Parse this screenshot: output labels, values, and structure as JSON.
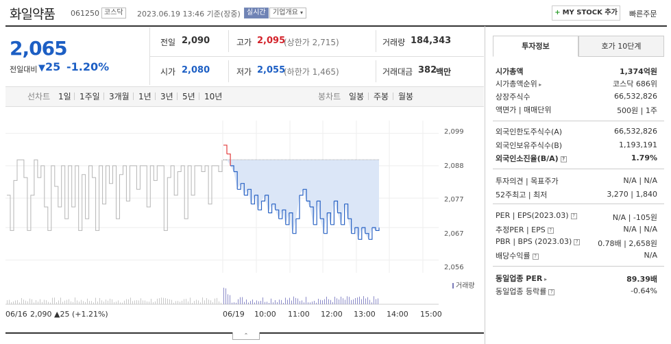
{
  "header": {
    "stock_name": "화일약품",
    "stock_code": "061250",
    "market_badge": "코스닥",
    "datetime": "2023.06.19 13:46 기준(장중)",
    "live_label": "실시간",
    "overview_label": "기업개요",
    "mystock_label": "MY STOCK 추가",
    "quick_order_label": "빠른주문"
  },
  "quote": {
    "price": "2,065",
    "diff_label": "전일대비",
    "diff_value": "25",
    "diff_pct": "-1.20%",
    "prev_close_label": "전일",
    "prev_close": "2,090",
    "high_label": "고가",
    "high": "2,095",
    "upper_limit": "(상한가 2,715)",
    "volume_label": "거래량",
    "volume": "184,343",
    "open_label": "시가",
    "open": "2,080",
    "low_label": "저가",
    "low": "2,055",
    "lower_limit": "(하한가 1,465)",
    "amount_label": "거래대금",
    "amount": "382",
    "amount_unit": "백만"
  },
  "chart_tabs": {
    "line_label": "선차트",
    "items": [
      "1일",
      "1주일",
      "3개월",
      "1년",
      "3년",
      "5년",
      "10년"
    ],
    "candle_label": "봉차트",
    "candle_items": [
      "일봉",
      "주봉",
      "월봉"
    ]
  },
  "side": {
    "tab_active": "투자정보",
    "tab_other": "호가 10단계",
    "rows": [
      {
        "label": "시가총액",
        "value": "1,374억원",
        "bold": true
      },
      {
        "label": "시가총액순위",
        "value": "코스닥 686위"
      },
      {
        "label": "상장주식수",
        "value": "66,532,826"
      },
      {
        "label": "액면가 | 매매단위",
        "value": "500원 | 1주"
      },
      {
        "label": "외국인한도주식수(A)",
        "value": "66,532,826"
      },
      {
        "label": "외국인보유주식수(B)",
        "value": "1,193,191"
      },
      {
        "label": "외국인소진율(B/A)",
        "value": "1.79%",
        "bold": true
      },
      {
        "label": "투자의견 | 목표주가",
        "value": "N/A | N/A"
      },
      {
        "label": "52주최고 | 최저",
        "value": "3,270 | 1,840"
      },
      {
        "label": "PER | EPS(2023.03)",
        "value": "N/A | -105원"
      },
      {
        "label": "추정PER | EPS",
        "value": "N/A | N/A"
      },
      {
        "label": "PBR | BPS (2023.03)",
        "value": "0.78배 | 2,658원"
      },
      {
        "label": "배당수익률",
        "value": "N/A"
      },
      {
        "label": "동일업종 PER",
        "value": "89.39배",
        "bold": true
      },
      {
        "label": "동일업종 등락률",
        "value": "-0.64%"
      }
    ]
  },
  "chart_data": {
    "type": "line",
    "y_ticks": [
      "2,099",
      "2,088",
      "2,077",
      "2,067",
      "2,056"
    ],
    "ylim": [
      2054,
      2101
    ],
    "x_labels": [
      "06/16",
      "06/19",
      "10:00",
      "11:00",
      "12:00",
      "13:00",
      "14:00",
      "15:00"
    ],
    "prev_day_note": "2,090 ▲25 (+1.21%)",
    "volume_label": "거래량",
    "prev_close_ref": 2090,
    "prev_series": [
      2078,
      2066,
      2083,
      2090,
      2090,
      2084,
      2066,
      2078,
      2090,
      2084,
      2088,
      2074,
      2066,
      2088,
      2081,
      2074,
      2088,
      2070,
      2088,
      2074,
      2088,
      2066,
      2085,
      2070,
      2088,
      2084,
      2066,
      2088,
      2075,
      2088,
      2082,
      2088,
      2070,
      2085,
      2088,
      2076,
      2088,
      2088,
      2080,
      2088,
      2088,
      2074,
      2088,
      2083,
      2088,
      2088,
      2066,
      2084,
      2088,
      2078,
      2086,
      2088,
      2070,
      2088,
      2078,
      2088,
      2088,
      2086,
      2088,
      2075,
      2088,
      2088,
      2086,
      2090
    ],
    "today_series": [
      2095,
      2092,
      2088,
      2086,
      2080,
      2082,
      2078,
      2080,
      2075,
      2078,
      2073,
      2076,
      2078,
      2072,
      2075,
      2073,
      2070,
      2073,
      2068,
      2072,
      2065,
      2070,
      2078,
      2080,
      2076,
      2074,
      2068,
      2076,
      2070,
      2065,
      2072,
      2068,
      2076,
      2072,
      2068,
      2075,
      2070,
      2065,
      2067,
      2063,
      2067,
      2065,
      2063,
      2067,
      2066,
      2067
    ]
  }
}
